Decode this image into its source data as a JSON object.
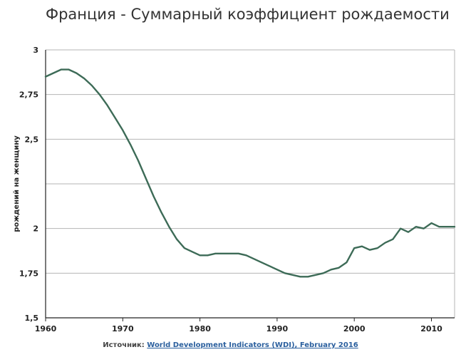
{
  "title": "Франция - Суммарный коэффициент рождаемости",
  "source": {
    "prefix": "Источник:",
    "link_text": "World Development Indicators (WDI), February 2016"
  },
  "colors": {
    "line": "#3d6b57",
    "grid": "#b5b5b5",
    "axis": "#222222"
  },
  "chart_data": {
    "type": "line",
    "ylabel": "рождений на женщину",
    "xlabel": "",
    "xlim": [
      1960,
      2013
    ],
    "ylim": [
      1.5,
      3
    ],
    "grid": true,
    "x_ticks": [
      {
        "value": 1960,
        "label": "1960"
      },
      {
        "value": 1970,
        "label": "1970"
      },
      {
        "value": 1980,
        "label": "1980"
      },
      {
        "value": 1990,
        "label": "1990"
      },
      {
        "value": 2000,
        "label": "2000"
      },
      {
        "value": 2010,
        "label": "2010"
      }
    ],
    "y_ticks": [
      {
        "value": 1.5,
        "label": "1,5"
      },
      {
        "value": 1.75,
        "label": "1,75"
      },
      {
        "value": 2,
        "label": "2"
      },
      {
        "value": 2.25,
        "label": ""
      },
      {
        "value": 2.5,
        "label": "2,5"
      },
      {
        "value": 2.75,
        "label": "2,75"
      },
      {
        "value": 3,
        "label": "3"
      }
    ],
    "x": [
      1960,
      1961,
      1962,
      1963,
      1964,
      1965,
      1966,
      1967,
      1968,
      1969,
      1970,
      1971,
      1972,
      1973,
      1974,
      1975,
      1976,
      1977,
      1978,
      1979,
      1980,
      1981,
      1982,
      1983,
      1984,
      1985,
      1986,
      1987,
      1988,
      1989,
      1990,
      1991,
      1992,
      1993,
      1994,
      1995,
      1996,
      1997,
      1998,
      1999,
      2000,
      2001,
      2002,
      2003,
      2004,
      2005,
      2006,
      2007,
      2008,
      2009,
      2010,
      2011,
      2012,
      2013
    ],
    "series": [
      {
        "values": [
          2.85,
          2.87,
          2.89,
          2.89,
          2.87,
          2.84,
          2.8,
          2.75,
          2.69,
          2.62,
          2.55,
          2.47,
          2.38,
          2.28,
          2.18,
          2.09,
          2.01,
          1.94,
          1.89,
          1.87,
          1.85,
          1.85,
          1.86,
          1.86,
          1.86,
          1.86,
          1.85,
          1.83,
          1.81,
          1.79,
          1.77,
          1.75,
          1.74,
          1.73,
          1.73,
          1.74,
          1.75,
          1.77,
          1.78,
          1.81,
          1.89,
          1.9,
          1.88,
          1.89,
          1.92,
          1.94,
          2.0,
          1.98,
          2.01,
          2.0,
          2.03,
          2.01,
          2.01,
          2.01
        ]
      }
    ]
  }
}
